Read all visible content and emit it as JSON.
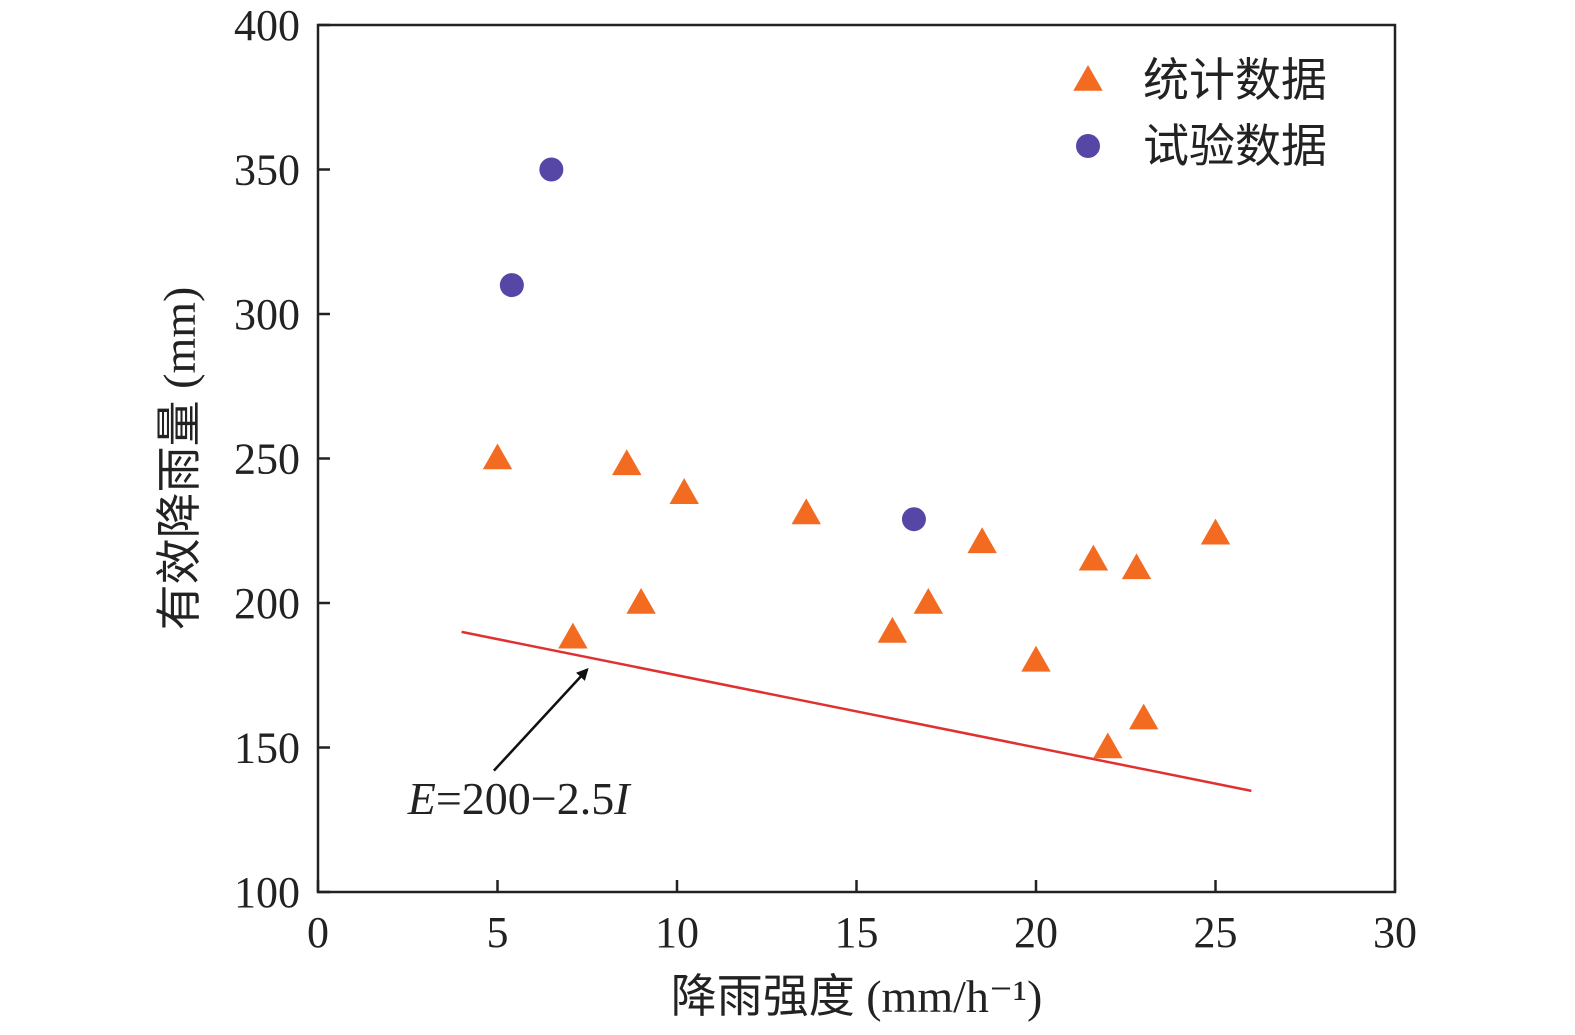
{
  "chart_data": {
    "type": "scatter",
    "title": "",
    "xlabel": "降雨强度 (mm/h⁻¹)",
    "ylabel": "有效降雨量 (mm)",
    "xlim": [
      0,
      30
    ],
    "ylim": [
      100,
      400
    ],
    "x_ticks": [
      0,
      5,
      10,
      15,
      20,
      25,
      30
    ],
    "y_ticks": [
      100,
      150,
      200,
      250,
      300,
      350,
      400
    ],
    "grid": false,
    "legend_position": "top-right",
    "series": [
      {
        "name": "统计数据",
        "marker": "triangle",
        "color": "#f26b21",
        "points": [
          {
            "x": 5.0,
            "y": 250
          },
          {
            "x": 7.1,
            "y": 188
          },
          {
            "x": 8.6,
            "y": 248
          },
          {
            "x": 9.0,
            "y": 200
          },
          {
            "x": 10.2,
            "y": 238
          },
          {
            "x": 13.6,
            "y": 231
          },
          {
            "x": 16.0,
            "y": 190
          },
          {
            "x": 17.0,
            "y": 200
          },
          {
            "x": 18.5,
            "y": 221
          },
          {
            "x": 20.0,
            "y": 180
          },
          {
            "x": 21.6,
            "y": 215
          },
          {
            "x": 22.0,
            "y": 150
          },
          {
            "x": 22.8,
            "y": 212
          },
          {
            "x": 23.0,
            "y": 160
          },
          {
            "x": 25.0,
            "y": 224
          }
        ]
      },
      {
        "name": "试验数据",
        "marker": "circle",
        "color": "#5647a6",
        "points": [
          {
            "x": 5.4,
            "y": 310
          },
          {
            "x": 6.5,
            "y": 350
          },
          {
            "x": 16.6,
            "y": 229
          }
        ]
      }
    ],
    "fit_line": {
      "equation": "E=200−2.5I",
      "intercept": 200,
      "slope": -2.5,
      "x_range": [
        4,
        26
      ],
      "color": "#e03131"
    },
    "annotation": {
      "text_parts": [
        {
          "text": "E",
          "italic": true
        },
        {
          "text": "=200−2.5",
          "italic": false
        },
        {
          "text": "I",
          "italic": true
        }
      ],
      "label_at": {
        "x": 2.5,
        "y": 127
      },
      "arrow_from": {
        "x": 4.9,
        "y": 142
      },
      "arrow_to": {
        "x": 7.5,
        "y": 177
      }
    }
  }
}
